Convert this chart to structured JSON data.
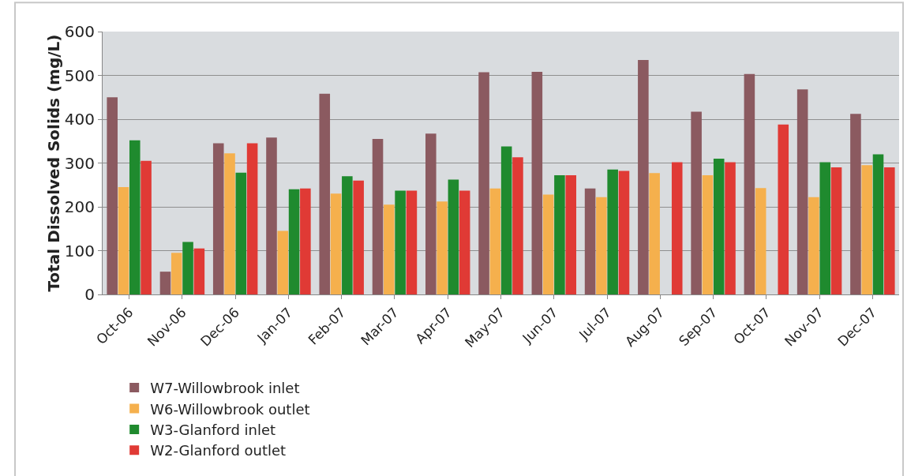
{
  "chart_data": {
    "type": "bar",
    "ylabel": "Total Dissolved Solids (mg/L)",
    "categories": [
      "Oct-06",
      "Nov-06",
      "Dec-06",
      "Jan-07",
      "Feb-07",
      "Mar-07",
      "Apr-07",
      "May-07",
      "Jun-07",
      "Jul-07",
      "Aug-07",
      "Sep-07",
      "Oct-07",
      "Nov-07",
      "Dec-07"
    ],
    "series": [
      {
        "name": "W7-Willowbrook inlet",
        "color": "#8b5a60",
        "values": [
          450,
          52,
          345,
          358,
          458,
          355,
          367,
          507,
          508,
          242,
          535,
          417,
          503,
          468,
          412
        ]
      },
      {
        "name": "W6-Willowbrook outlet",
        "color": "#f5b04d",
        "values": [
          245,
          95,
          322,
          145,
          230,
          205,
          212,
          242,
          228,
          222,
          277,
          272,
          243,
          222,
          295
        ]
      },
      {
        "name": "W3-Glanford inlet",
        "color": "#1f8a2e",
        "values": [
          352,
          120,
          278,
          240,
          270,
          237,
          262,
          338,
          272,
          285,
          null,
          310,
          null,
          302,
          320
        ]
      },
      {
        "name": "W2-Glanford outlet",
        "color": "#e03a35",
        "values": [
          305,
          105,
          345,
          242,
          260,
          237,
          237,
          313,
          272,
          282,
          302,
          302,
          388,
          290,
          290
        ]
      }
    ],
    "ylim": [
      0,
      600
    ],
    "yticks": [
      0,
      100,
      200,
      300,
      400,
      500,
      600
    ],
    "grid": "y",
    "legend": "bottom"
  }
}
